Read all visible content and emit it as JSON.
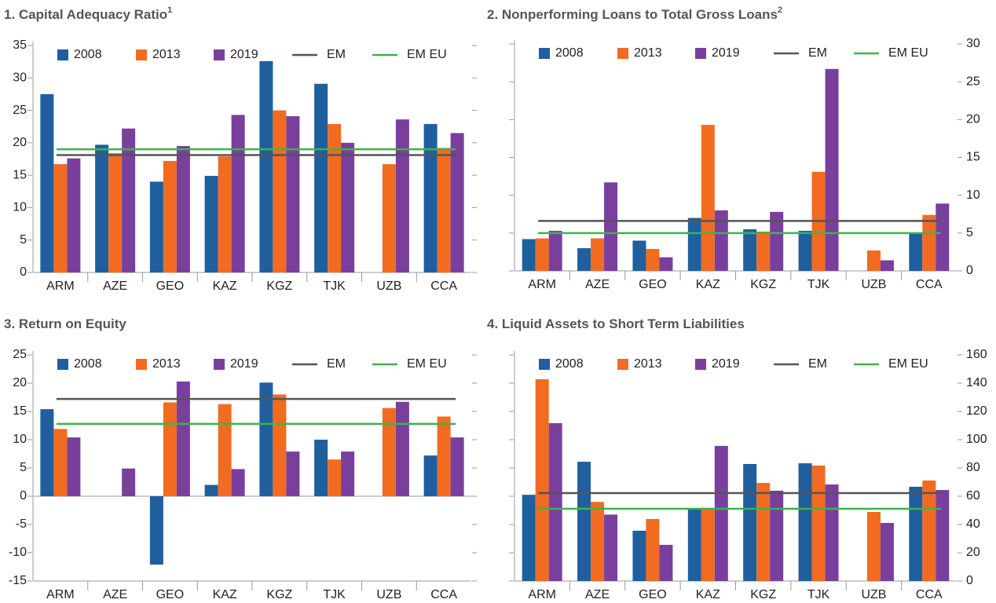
{
  "chart_data": [
    {
      "type": "bar",
      "title": "1. Capital Adequacy Ratio",
      "title_superscript": "1",
      "categories": [
        "ARM",
        "AZE",
        "GEO",
        "KAZ",
        "KGZ",
        "TJK",
        "UZB",
        "CCA"
      ],
      "series": [
        {
          "name": "2008",
          "color": "#1f5f9e",
          "values": [
            27.5,
            19.7,
            14.0,
            14.9,
            32.6,
            29.1,
            null,
            22.9
          ]
        },
        {
          "name": "2013",
          "color": "#f26b21",
          "values": [
            16.7,
            18.4,
            17.2,
            17.9,
            25.0,
            22.9,
            16.7,
            19.2
          ]
        },
        {
          "name": "2019",
          "color": "#7a3f9d",
          "values": [
            17.6,
            22.2,
            19.5,
            24.3,
            24.1,
            20.0,
            23.6,
            21.5
          ]
        }
      ],
      "reference_lines": [
        {
          "name": "EM",
          "color": "#555555",
          "value": 18.1
        },
        {
          "name": "EM EU",
          "color": "#3cb44b",
          "value": 19.0
        }
      ],
      "ylim": [
        0,
        35
      ],
      "yticks": [
        0,
        5,
        10,
        15,
        20,
        25,
        30,
        35
      ],
      "y_axis_side": "left"
    },
    {
      "type": "bar",
      "title": "2. Nonperforming Loans to Total Gross Loans",
      "title_superscript": "2",
      "categories": [
        "ARM",
        "AZE",
        "GEO",
        "KAZ",
        "KGZ",
        "TJK",
        "UZB",
        "CCA"
      ],
      "series": [
        {
          "name": "2008",
          "color": "#1f5f9e",
          "values": [
            4.2,
            3.0,
            4.0,
            7.0,
            5.5,
            5.3,
            null,
            4.9
          ]
        },
        {
          "name": "2013",
          "color": "#f26b21",
          "values": [
            4.3,
            4.3,
            2.9,
            19.3,
            5.2,
            13.1,
            2.7,
            7.4
          ]
        },
        {
          "name": "2019",
          "color": "#7a3f9d",
          "values": [
            5.3,
            11.7,
            1.8,
            8.0,
            7.8,
            26.7,
            1.4,
            8.9
          ]
        }
      ],
      "reference_lines": [
        {
          "name": "EM",
          "color": "#555555",
          "value": 6.6
        },
        {
          "name": "EM EU",
          "color": "#3cb44b",
          "value": 5.0
        }
      ],
      "ylim": [
        0,
        30
      ],
      "yticks": [
        0,
        5,
        10,
        15,
        20,
        25,
        30
      ],
      "y_axis_side": "right"
    },
    {
      "type": "bar",
      "title": "3. Return on Equity",
      "categories": [
        "ARM",
        "AZE",
        "GEO",
        "KAZ",
        "KGZ",
        "TJK",
        "UZB",
        "CCA"
      ],
      "series": [
        {
          "name": "2008",
          "color": "#1f5f9e",
          "values": [
            15.4,
            null,
            -12.1,
            2.0,
            20.1,
            10.0,
            null,
            7.2
          ]
        },
        {
          "name": "2013",
          "color": "#f26b21",
          "values": [
            11.9,
            null,
            16.6,
            16.3,
            18.0,
            6.5,
            15.6,
            14.1
          ]
        },
        {
          "name": "2019",
          "color": "#7a3f9d",
          "values": [
            10.4,
            4.9,
            20.3,
            4.8,
            7.9,
            7.9,
            16.7,
            10.4
          ]
        }
      ],
      "reference_lines": [
        {
          "name": "EM",
          "color": "#555555",
          "value": 17.2
        },
        {
          "name": "EM EU",
          "color": "#3cb44b",
          "value": 12.8
        }
      ],
      "ylim": [
        -15,
        25
      ],
      "yticks": [
        -15,
        -10,
        -5,
        0,
        5,
        10,
        15,
        20,
        25
      ],
      "y_axis_side": "left"
    },
    {
      "type": "bar",
      "title": "4. Liquid Assets to Short Term Liabilities",
      "categories": [
        "ARM",
        "AZE",
        "GEO",
        "KAZ",
        "KGZ",
        "TJK",
        "UZB",
        "CCA"
      ],
      "series": [
        {
          "name": "2008",
          "color": "#1f5f9e",
          "values": [
            61,
            84.4,
            35.6,
            51,
            82.8,
            83.3,
            null,
            66.7
          ]
        },
        {
          "name": "2013",
          "color": "#f26b21",
          "values": [
            142.8,
            56,
            43.9,
            51.7,
            69.4,
            81.7,
            48.9,
            71.1
          ]
        },
        {
          "name": "2019",
          "color": "#7a3f9d",
          "values": [
            111.7,
            47,
            25.6,
            95.6,
            63.9,
            68.3,
            41.1,
            64.4
          ]
        }
      ],
      "reference_lines": [
        {
          "name": "EM",
          "color": "#555555",
          "value": 62.2
        },
        {
          "name": "EM EU",
          "color": "#3cb44b",
          "value": 51.1
        }
      ],
      "ylim": [
        0,
        160
      ],
      "yticks": [
        0,
        20,
        40,
        60,
        80,
        100,
        120,
        140,
        160
      ],
      "y_axis_side": "right"
    }
  ]
}
